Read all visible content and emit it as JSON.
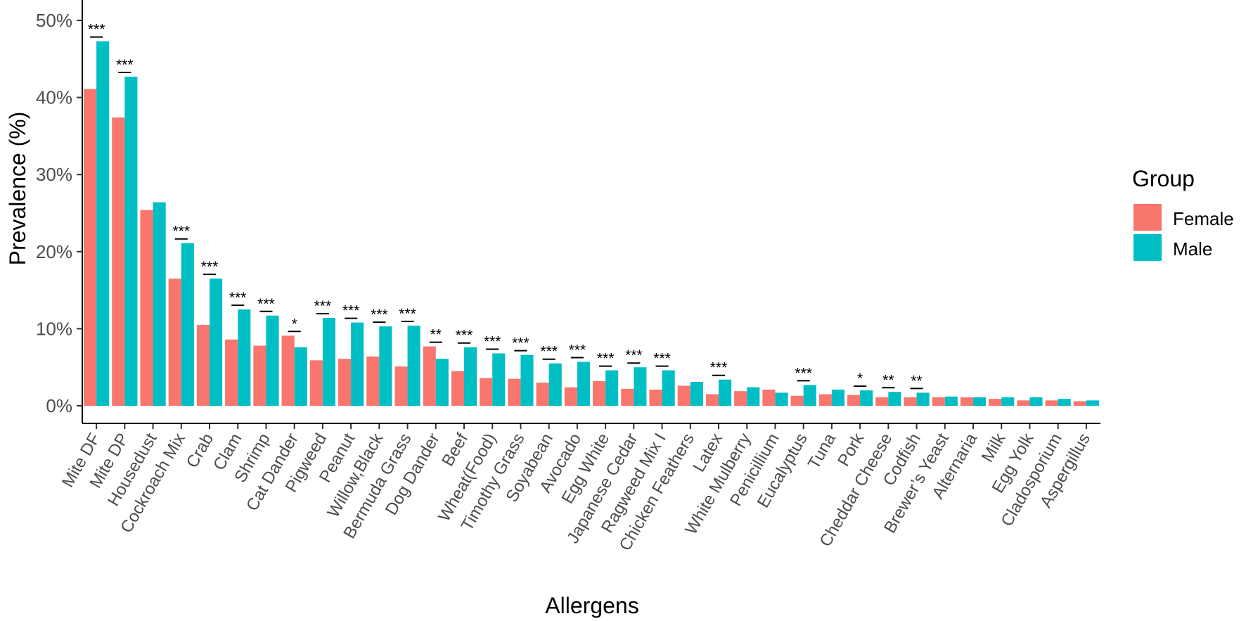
{
  "chart_data": {
    "type": "bar",
    "title": "",
    "xlabel": "Allergens",
    "ylabel": "Prevalence (%)",
    "ylim": [
      0,
      0.52
    ],
    "yticks": [
      0,
      0.1,
      0.2,
      0.3,
      0.4,
      0.5
    ],
    "ytick_labels": [
      "0%",
      "10%",
      "20%",
      "30%",
      "40%",
      "50%"
    ],
    "grid": false,
    "legend": {
      "title": "Group",
      "position": "right"
    },
    "categories": [
      "Mite DF",
      "Mite DP",
      "Housedust",
      "Cockroach Mix",
      "Crab",
      "Clam",
      "Shrimp",
      "Cat Dander",
      "Pigweed",
      "Peanut",
      "Willow,Black",
      "Bermuda Grass",
      "Dog Dander",
      "Beef",
      "Wheat(Food)",
      "Timothy Grass",
      "Soyabean",
      "Avocado",
      "Egg White",
      "Japanese Cedar",
      "Ragweed Mix I",
      "Chicken Feathers",
      "Latex",
      "White Mulberry",
      "Penicillium",
      "Eucalyptus",
      "Tuna",
      "Pork",
      "Cheddar Cheese",
      "Codfish",
      "Brewer’s Yeast",
      "Alternaria",
      "Milk",
      "Egg Yolk",
      "Cladosporium",
      "Aspergillus"
    ],
    "series": [
      {
        "name": "Female",
        "color": "#F8766D",
        "values": [
          0.411,
          0.374,
          0.254,
          0.165,
          0.105,
          0.086,
          0.078,
          0.091,
          0.059,
          0.061,
          0.064,
          0.051,
          0.077,
          0.045,
          0.036,
          0.035,
          0.03,
          0.024,
          0.032,
          0.022,
          0.021,
          0.026,
          0.015,
          0.019,
          0.021,
          0.013,
          0.015,
          0.014,
          0.011,
          0.011,
          0.011,
          0.011,
          0.009,
          0.007,
          0.007,
          0.006
        ]
      },
      {
        "name": "Male",
        "color": "#00BFC4",
        "values": [
          0.473,
          0.427,
          0.264,
          0.211,
          0.165,
          0.125,
          0.117,
          0.076,
          0.114,
          0.108,
          0.103,
          0.104,
          0.061,
          0.076,
          0.068,
          0.066,
          0.055,
          0.057,
          0.046,
          0.05,
          0.046,
          0.031,
          0.034,
          0.024,
          0.017,
          0.027,
          0.021,
          0.02,
          0.018,
          0.017,
          0.012,
          0.011,
          0.011,
          0.011,
          0.009,
          0.007
        ]
      }
    ],
    "significance": [
      "***",
      "***",
      "",
      "***",
      "***",
      "***",
      "***",
      "*",
      "***",
      "***",
      "***",
      "***",
      "**",
      "***",
      "***",
      "***",
      "***",
      "***",
      "***",
      "***",
      "***",
      "",
      "***",
      "",
      "",
      "***",
      "",
      "*",
      "**",
      "**",
      "",
      "",
      "",
      "",
      "",
      ""
    ]
  }
}
